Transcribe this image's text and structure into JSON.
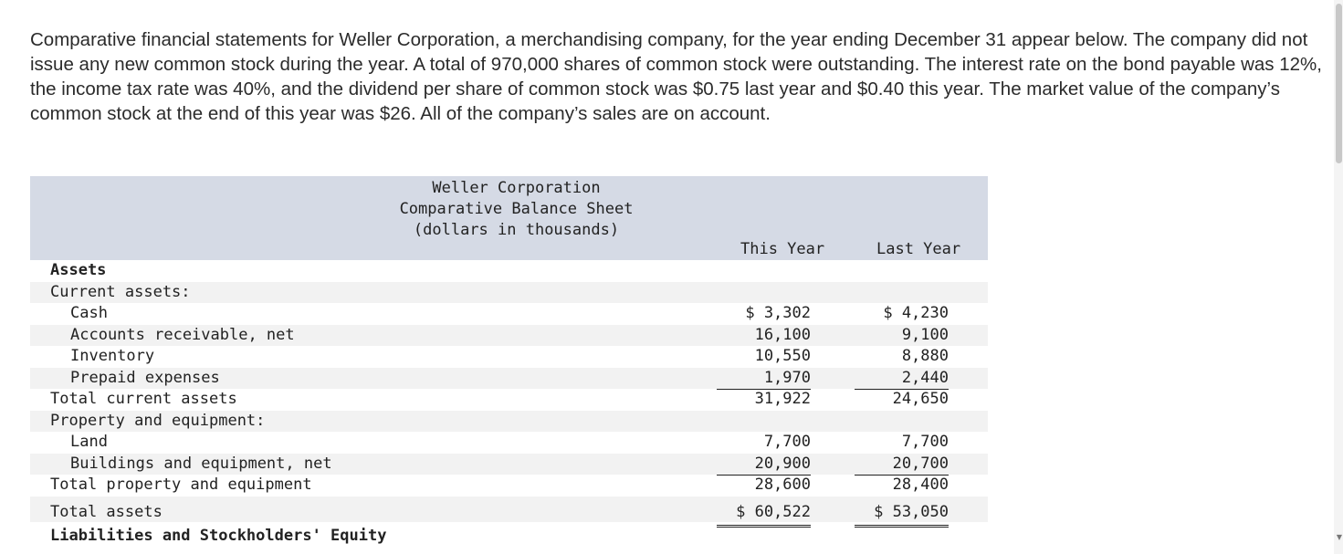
{
  "intro": "Comparative financial statements for Weller Corporation, a merchandising company, for the year ending December 31 appear below. The company did not issue any new common stock during the year. A total of 970,000 shares of common stock were outstanding. The interest rate on the bond payable was 12%, the income tax rate was 40%, and the dividend per share of common stock was $0.75 last year and $0.40 this year. The market value of the company’s common stock at the end of this year was $26. All of the company’s sales are on account.",
  "sheet": {
    "title_line1": "Weller Corporation",
    "title_line2": "Comparative Balance Sheet",
    "title_line3": "(dollars in thousands)",
    "col_this": "This Year",
    "col_last": "Last Year",
    "rows": [
      {
        "label": "Assets",
        "this": "",
        "last": ""
      },
      {
        "label": "Current assets:",
        "this": "",
        "last": ""
      },
      {
        "label": "Cash",
        "this": "$ 3,302",
        "last": "$ 4,230"
      },
      {
        "label": "Accounts receivable, net",
        "this": "16,100",
        "last": "9,100"
      },
      {
        "label": "Inventory",
        "this": "10,550",
        "last": "8,880"
      },
      {
        "label": "Prepaid expenses",
        "this": "1,970",
        "last": "2,440"
      },
      {
        "label": "Total current assets",
        "this": "31,922",
        "last": "24,650"
      },
      {
        "label": "Property and equipment:",
        "this": "",
        "last": ""
      },
      {
        "label": "Land",
        "this": "7,700",
        "last": "7,700"
      },
      {
        "label": "Buildings and equipment, net",
        "this": "20,900",
        "last": "20,700"
      },
      {
        "label": "Total property and equipment",
        "this": "28,600",
        "last": "28,400"
      },
      {
        "label": "Total assets",
        "this": "$ 60,522",
        "last": "$ 53,050"
      },
      {
        "label": "Liabilities and Stockholders' Equity",
        "this": "",
        "last": ""
      }
    ]
  }
}
